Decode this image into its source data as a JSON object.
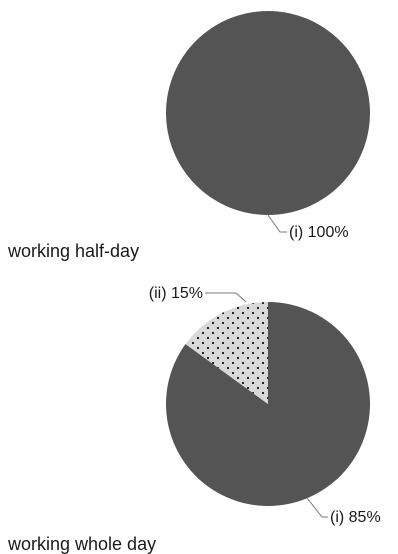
{
  "chart_data": [
    {
      "type": "pie",
      "title": "working half-day",
      "slices": [
        {
          "label": "(i)",
          "value": 100,
          "value_label": "100%",
          "color": "#545454",
          "pattern": "solid"
        }
      ]
    },
    {
      "type": "pie",
      "title": "working whole day",
      "slices": [
        {
          "label": "(i)",
          "value": 85,
          "value_label": "85%",
          "color": "#545454",
          "pattern": "solid"
        },
        {
          "label": "(ii)",
          "value": 15,
          "value_label": "15%",
          "color": "#d9d9d9",
          "pattern": "dotted"
        }
      ]
    }
  ]
}
